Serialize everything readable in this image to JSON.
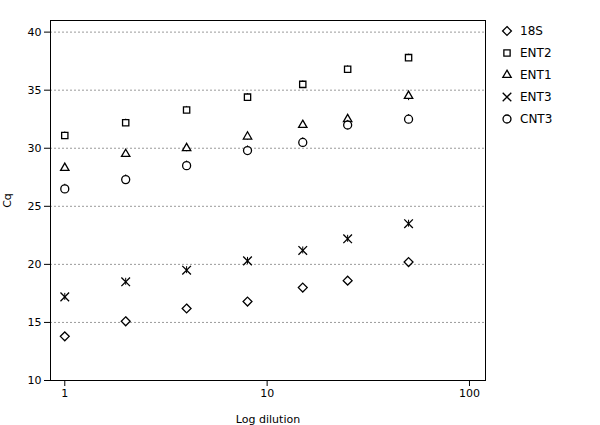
{
  "chart_data": {
    "type": "scatter",
    "title": "",
    "xlabel": "Log dilution",
    "ylabel": "Cq",
    "log": "x",
    "xlim": [
      0.85,
      120
    ],
    "ylim": [
      10,
      41
    ],
    "xticks": [
      1,
      10,
      100
    ],
    "yticks": [
      10,
      15,
      20,
      25,
      30,
      35,
      40
    ],
    "grid": true,
    "legend": "right",
    "series": [
      {
        "name": "18S",
        "marker": "diamond",
        "color": "#000000",
        "x": [
          1,
          2,
          4,
          8,
          15,
          25,
          50
        ],
        "values": [
          13.8,
          15.1,
          16.2,
          16.8,
          18.0,
          18.6,
          20.2
        ],
        "yerr": [
          0.2,
          0.15,
          0.2,
          0.2,
          0.2,
          0.25,
          0.3
        ]
      },
      {
        "name": "ENT2",
        "marker": "square",
        "color": "#000000",
        "x": [
          1,
          2,
          4,
          8,
          15,
          25,
          50
        ],
        "values": [
          31.1,
          32.2,
          33.3,
          34.4,
          35.5,
          36.8,
          37.8
        ],
        "yerr": [
          0.3,
          0.3,
          0.3,
          0.3,
          0.3,
          0.3,
          0.3
        ]
      },
      {
        "name": "ENT1",
        "marker": "triangle",
        "color": "#000000",
        "x": [
          1,
          2,
          4,
          8,
          15,
          25,
          50
        ],
        "values": [
          28.3,
          29.5,
          30.0,
          31.0,
          32.0,
          32.5,
          34.5
        ],
        "yerr": [
          0.3,
          0.3,
          0.3,
          0.3,
          0.3,
          0.3,
          0.4
        ]
      },
      {
        "name": "ENT3",
        "marker": "x",
        "color": "#000000",
        "x": [
          1,
          2,
          4,
          8,
          15,
          25,
          50
        ],
        "values": [
          17.2,
          18.5,
          19.5,
          20.3,
          21.2,
          22.2,
          23.5
        ],
        "yerr": [
          0.3,
          0.3,
          0.3,
          0.3,
          0.3,
          0.3,
          0.3
        ]
      },
      {
        "name": "CNT3",
        "marker": "circle",
        "color": "#000000",
        "x": [
          1,
          2,
          4,
          8,
          15,
          25,
          50
        ],
        "values": [
          26.5,
          27.3,
          28.5,
          29.8,
          30.5,
          32.0,
          32.5
        ],
        "yerr": [
          0.4,
          0.4,
          0.4,
          0.4,
          0.4,
          0.4,
          0.4
        ]
      }
    ]
  }
}
